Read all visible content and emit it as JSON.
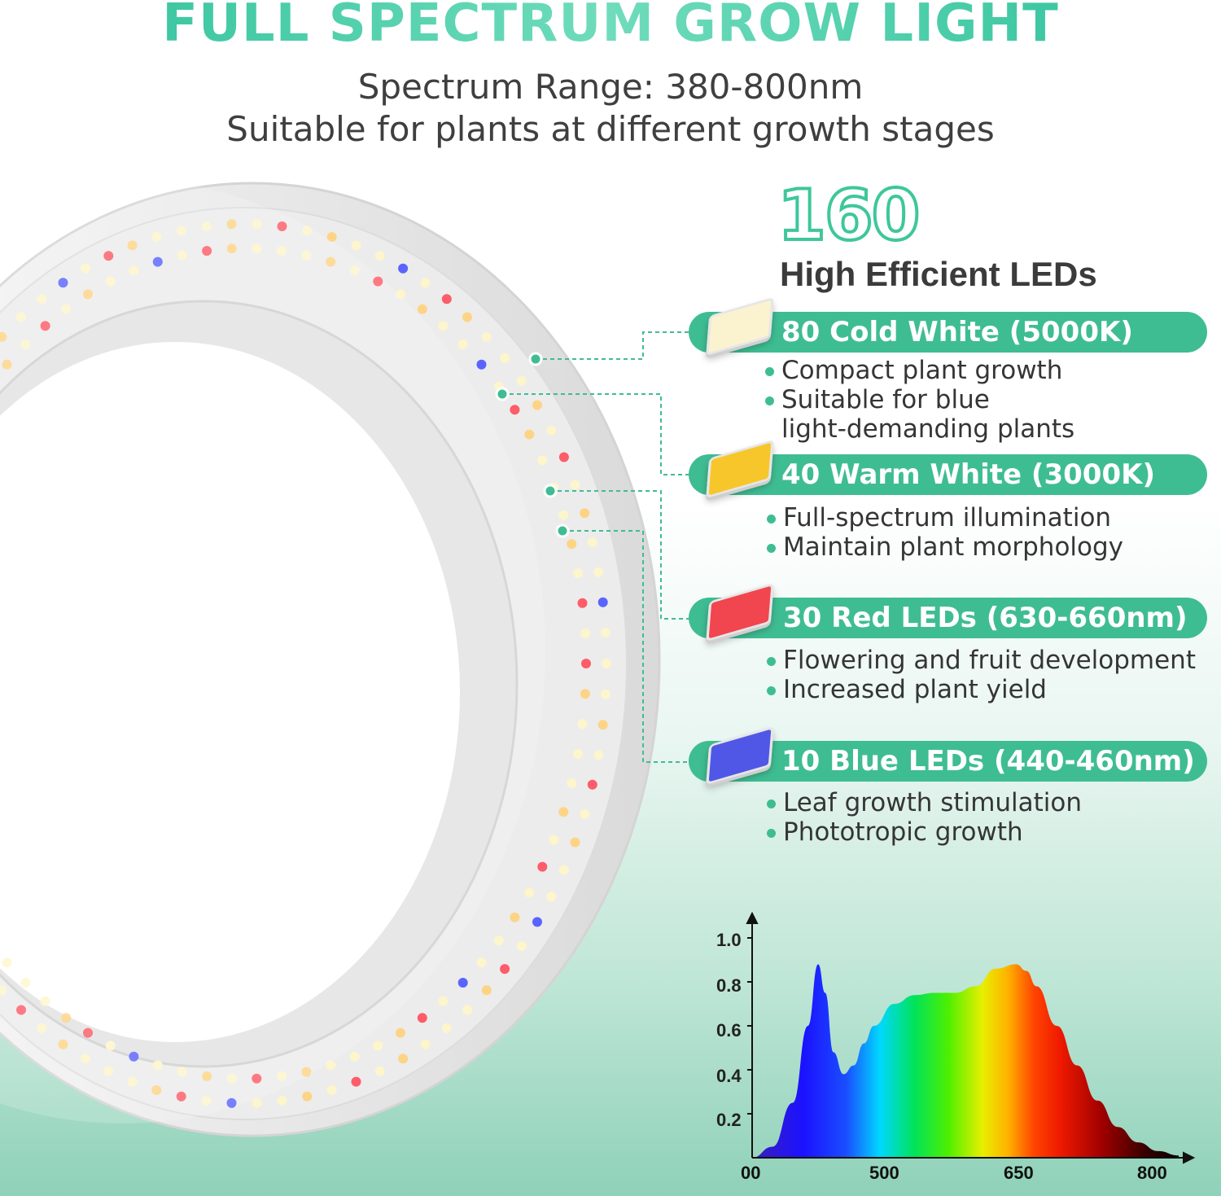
{
  "header": {
    "title": "FULL SPECTRUM GROW LIGHT",
    "subtitle_1": "Spectrum Range: 380-800nm",
    "subtitle_2": "Suitable for plants at different growth stages"
  },
  "summary": {
    "count": "160",
    "label": "High Efficient LEDs"
  },
  "features": [
    {
      "label": "80 Cold White (5000K)",
      "chip_color": "#fbf2cf",
      "bullets": [
        "Compact plant growth",
        "Suitable for blue",
        "light-demanding plants"
      ]
    },
    {
      "label": "40 Warm White (3000K)",
      "chip_color": "#f7c62a",
      "bullets": [
        "Full-spectrum illumination",
        "Maintain plant morphology"
      ]
    },
    {
      "label": "30 Red LEDs (630-660nm)",
      "chip_color": "#f1464f",
      "bullets": [
        "Flowering and fruit development",
        "Increased plant yield"
      ]
    },
    {
      "label": "10 Blue LEDs (440-460nm)",
      "chip_color": "#5057e6",
      "bullets": [
        "Leaf growth stimulation",
        "Phototropic growth"
      ]
    }
  ],
  "chart_data": {
    "type": "area",
    "x_ticks": [
      "00",
      "500",
      "650",
      "800"
    ],
    "y_ticks": [
      "1.0",
      "0.8",
      "0.6",
      "0.4",
      "0.2"
    ],
    "x": [
      380,
      400,
      420,
      435,
      445,
      452,
      460,
      470,
      480,
      490,
      500,
      520,
      540,
      560,
      580,
      600,
      620,
      640,
      650,
      660,
      680,
      700,
      720,
      740,
      760,
      780,
      800
    ],
    "y": [
      0.0,
      0.05,
      0.25,
      0.6,
      0.88,
      0.75,
      0.48,
      0.38,
      0.42,
      0.52,
      0.6,
      0.7,
      0.74,
      0.75,
      0.75,
      0.78,
      0.86,
      0.88,
      0.85,
      0.78,
      0.6,
      0.42,
      0.26,
      0.14,
      0.07,
      0.03,
      0.01
    ],
    "xlim": [
      380,
      800
    ],
    "ylim": [
      0,
      1.0
    ]
  }
}
